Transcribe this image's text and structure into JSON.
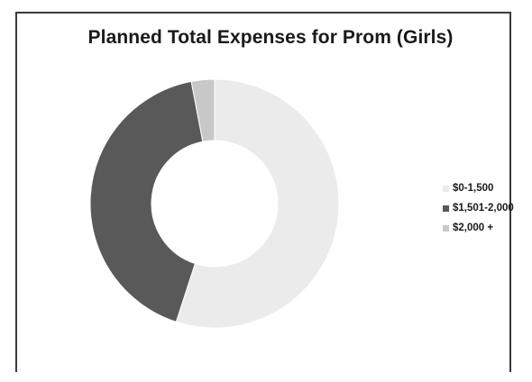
{
  "chart_data": {
    "type": "pie",
    "subtype": "donut",
    "title": "Planned Total Expenses for Prom (Girls)",
    "categories": [
      "$0-1,500",
      "$1,501-2,000",
      "$2,000 +"
    ],
    "values": [
      55,
      42,
      3
    ],
    "colors": [
      "#ebebeb",
      "#595959",
      "#c8c8c8"
    ],
    "legend_position": "right",
    "data_labels": false
  }
}
